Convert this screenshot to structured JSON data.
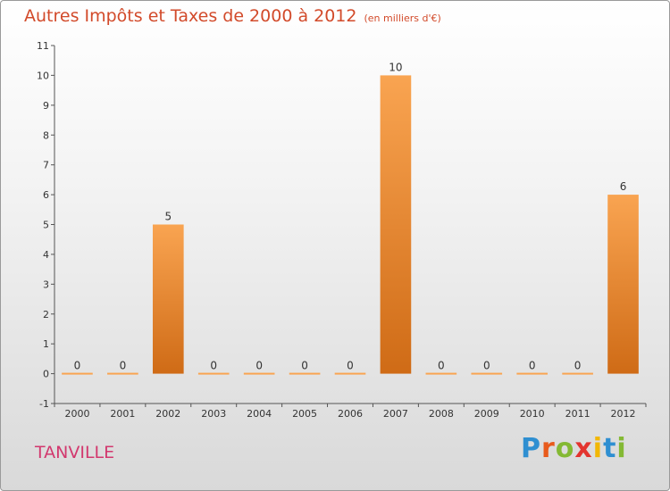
{
  "chart_data": {
    "type": "bar",
    "title": "Autres Impôts et Taxes de 2000 à 2012",
    "subtitle": "(en milliers d'€)",
    "categories": [
      "2000",
      "2001",
      "2002",
      "2003",
      "2004",
      "2005",
      "2006",
      "2007",
      "2008",
      "2009",
      "2010",
      "2011",
      "2012"
    ],
    "values": [
      0,
      0,
      5,
      0,
      0,
      0,
      0,
      10,
      0,
      0,
      0,
      0,
      6
    ],
    "data_labels": [
      "0",
      "0",
      "5",
      "0",
      "0",
      "0",
      "0",
      "10",
      "0",
      "0",
      "0",
      "0",
      "6"
    ],
    "ylim": [
      -1,
      11
    ],
    "y_ticks": [
      "-1",
      "0",
      "1",
      "2",
      "3",
      "4",
      "5",
      "6",
      "7",
      "8",
      "9",
      "10",
      "11"
    ],
    "xlabel": "",
    "ylabel": "",
    "grid": false,
    "bar_color_light": "#f9a451",
    "bar_color_dark": "#cf6b16"
  },
  "commune": "TANVILLE",
  "brand": {
    "letters": [
      "P",
      "r",
      "o",
      "x",
      "i",
      "t",
      "i"
    ],
    "colors": [
      "#2f8fd1",
      "#e85a1b",
      "#84b934",
      "#e3342f",
      "#f2b705",
      "#2f8fd1",
      "#84b934"
    ]
  }
}
